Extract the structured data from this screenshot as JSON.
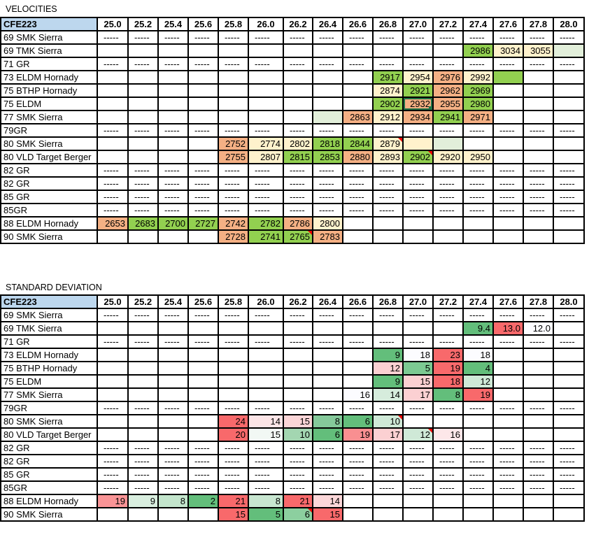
{
  "colors": {
    "green": "#92d050",
    "yellow": "#fff2cc",
    "orange": "#f4b084",
    "lightgreen": "#e2efda",
    "header": "#bdd7ee"
  },
  "tables": [
    {
      "title": "VELOCITIES",
      "corner": "CFE223",
      "columns": [
        "25.0",
        "25.2",
        "25.4",
        "25.6",
        "25.8",
        "26.0",
        "26.2",
        "26.4",
        "26.6",
        "26.8",
        "27.0",
        "27.2",
        "27.4",
        "27.6",
        "27.8",
        "28.0"
      ],
      "rows": [
        {
          "label": "69 SMK Sierra",
          "dashes": "-----"
        },
        {
          "label": "69 TMK Sierra",
          "cells": {
            "12": {
              "v": "2986",
              "c": "#92d050"
            },
            "13": {
              "v": "3034",
              "c": "#fff2cc"
            },
            "14": {
              "v": "3055",
              "c": "#fff2cc"
            },
            "15": {
              "v": "",
              "c": "#e2efda"
            }
          }
        },
        {
          "label": "71 GR",
          "dashes": "-----"
        },
        {
          "label": "73 ELDM Hornady",
          "cells": {
            "9": {
              "v": "2917",
              "c": "#92d050"
            },
            "10": {
              "v": "2954",
              "c": "#fff2cc"
            },
            "11": {
              "v": "2976",
              "c": "#f4b084"
            },
            "12": {
              "v": "2992",
              "c": "#fff2cc"
            },
            "13": {
              "v": "",
              "c": "#92d050"
            }
          }
        },
        {
          "label": "75 BTHP Hornady",
          "cells": {
            "9": {
              "v": "2874",
              "c": "#fff2cc"
            },
            "10": {
              "v": "2921",
              "c": "#92d050"
            },
            "11": {
              "v": "2962",
              "c": "#f4b084"
            },
            "12": {
              "v": "2969",
              "c": "#92d050"
            }
          }
        },
        {
          "label": "75 ELDM",
          "cells": {
            "9": {
              "v": "2902",
              "c": "#92d050"
            },
            "10": {
              "v": "2932",
              "c": "#f4b084",
              "sel": true
            },
            "11": {
              "v": "2955",
              "c": "#f4b084"
            },
            "12": {
              "v": "2980",
              "c": "#92d050"
            }
          }
        },
        {
          "label": "77 SMK Sierra",
          "cells": {
            "7": {
              "v": "",
              "c": "#e2efda"
            },
            "8": {
              "v": "2863",
              "c": "#f4b084"
            },
            "9": {
              "v": "2912",
              "c": "#fff2cc"
            },
            "10": {
              "v": "2934",
              "c": "#f4b084"
            },
            "11": {
              "v": "2941",
              "c": "#92d050"
            },
            "12": {
              "v": "2971",
              "c": "#f4b084"
            }
          }
        },
        {
          "label": "79GR",
          "dashes": "-----"
        },
        {
          "label": "80 SMK Sierra",
          "cells": {
            "4": {
              "v": "2752",
              "c": "#f4b084"
            },
            "5": {
              "v": "2774",
              "c": "#fff2cc"
            },
            "6": {
              "v": "2802",
              "c": "#fff2cc"
            },
            "7": {
              "v": "2818",
              "c": "#92d050"
            },
            "8": {
              "v": "2844",
              "c": "#92d050"
            },
            "9": {
              "v": "2879",
              "c": "#fff2cc",
              "note": true
            },
            "10": {
              "v": "",
              "c": "#fff2cc"
            },
            "11": {
              "v": "",
              "c": "#e2efda"
            }
          }
        },
        {
          "label": "80 VLD Target Berger",
          "cells": {
            "4": {
              "v": "2755",
              "c": "#f4b084"
            },
            "5": {
              "v": "2807",
              "c": "#fff2cc"
            },
            "6": {
              "v": "2815",
              "c": "#92d050"
            },
            "7": {
              "v": "2853",
              "c": "#92d050"
            },
            "8": {
              "v": "2880",
              "c": "#f4b084"
            },
            "9": {
              "v": "2893",
              "c": "#fff2cc"
            },
            "10": {
              "v": "2902",
              "c": "#92d050",
              "note": true
            },
            "11": {
              "v": "2920",
              "c": "#fff2cc"
            },
            "12": {
              "v": "2950",
              "c": "#fff2cc"
            }
          }
        },
        {
          "label": "82 GR",
          "dashes": "-----"
        },
        {
          "label": "82 GR",
          "dashes": "-----"
        },
        {
          "label": "85 GR",
          "dashes": "-----"
        },
        {
          "label": "85GR",
          "dashes": "-----"
        },
        {
          "label": "88 ELDM Hornady",
          "cells": {
            "0": {
              "v": "2653",
              "c": "#f4b084"
            },
            "1": {
              "v": "2683",
              "c": "#92d050"
            },
            "2": {
              "v": "2700",
              "c": "#92d050"
            },
            "3": {
              "v": "2727",
              "c": "#92d050"
            },
            "4": {
              "v": "2742",
              "c": "#f4b084"
            },
            "5": {
              "v": "2782",
              "c": "#92d050"
            },
            "6": {
              "v": "2786",
              "c": "#f4b084"
            },
            "7": {
              "v": "2800",
              "c": "#fff2cc"
            }
          }
        },
        {
          "label": "90 SMK Sierra",
          "cells": {
            "4": {
              "v": "2728",
              "c": "#f4b084"
            },
            "5": {
              "v": "2741",
              "c": "#92d050"
            },
            "6": {
              "v": "2765",
              "c": "#92d050",
              "note": true
            },
            "7": {
              "v": "2783",
              "c": "#f4b084"
            }
          }
        }
      ]
    },
    {
      "title": "STANDARD DEVIATION",
      "corner": "CFE223",
      "columns": [
        "25.0",
        "25.2",
        "25.4",
        "25.6",
        "25.8",
        "26.0",
        "26.2",
        "26.4",
        "26.6",
        "26.8",
        "27.0",
        "27.2",
        "27.4",
        "27.6",
        "27.8",
        "28.0"
      ],
      "rows": [
        {
          "label": "69 SMK Sierra",
          "dashes": "-----"
        },
        {
          "label": "69 TMK Sierra",
          "cells": {
            "12": {
              "v": "9.4",
              "c": "#63be7b"
            },
            "13": {
              "v": "13.0",
              "c": "#f8696b"
            },
            "14": {
              "v": "12.0",
              "c": "#fcfcff"
            }
          }
        },
        {
          "label": "71 GR",
          "dashes": "-----"
        },
        {
          "label": "73 ELDM Hornady",
          "cells": {
            "9": {
              "v": "9",
              "c": "#63be7b"
            },
            "10": {
              "v": "18",
              "c": "#fcfcff"
            },
            "11": {
              "v": "23",
              "c": "#f8696b"
            },
            "12": {
              "v": "18",
              "c": "#fcfcff"
            }
          }
        },
        {
          "label": "75 BTHP Hornady",
          "cells": {
            "9": {
              "v": "12",
              "c": "#fbd0d2"
            },
            "10": {
              "v": "5",
              "c": "#7cc992"
            },
            "11": {
              "v": "19",
              "c": "#f8696b"
            },
            "12": {
              "v": "4",
              "c": "#63be7b"
            }
          }
        },
        {
          "label": "75 ELDM",
          "cells": {
            "9": {
              "v": "9",
              "c": "#63be7b"
            },
            "10": {
              "v": "15",
              "c": "#fbd0d2"
            },
            "11": {
              "v": "18",
              "c": "#f8696b"
            },
            "12": {
              "v": "12",
              "c": "#cfe9d7"
            }
          }
        },
        {
          "label": "77 SMK Sierra",
          "cells": {
            "8": {
              "v": "16",
              "c": "#fcfcff"
            },
            "9": {
              "v": "14",
              "c": "#d6ecdc"
            },
            "10": {
              "v": "17",
              "c": "#fbd0d2"
            },
            "11": {
              "v": "8",
              "c": "#63be7b"
            },
            "12": {
              "v": "19",
              "c": "#f8696b"
            }
          }
        },
        {
          "label": "79GR",
          "dashes": "-----"
        },
        {
          "label": "80 SMK Sierra",
          "cells": {
            "4": {
              "v": "24",
              "c": "#f8696b"
            },
            "5": {
              "v": "14",
              "c": "#fde5e7"
            },
            "6": {
              "v": "15",
              "c": "#fbd5d7"
            },
            "7": {
              "v": "8",
              "c": "#85c99a"
            },
            "8": {
              "v": "6",
              "c": "#63be7b"
            },
            "9": {
              "v": "10",
              "c": "#cfe9d7",
              "note": true
            }
          }
        },
        {
          "label": "80 VLD Target Berger",
          "cells": {
            "4": {
              "v": "20",
              "c": "#f8696b"
            },
            "5": {
              "v": "15",
              "c": "#f2f8f4"
            },
            "6": {
              "v": "10",
              "c": "#a3d6b1"
            },
            "7": {
              "v": "6",
              "c": "#63be7b"
            },
            "8": {
              "v": "19",
              "c": "#f98f91"
            },
            "9": {
              "v": "17",
              "c": "#fbd0d2"
            },
            "10": {
              "v": "12",
              "c": "#cfe9d7",
              "note": true
            },
            "11": {
              "v": "16",
              "c": "#fde7e9"
            }
          }
        },
        {
          "label": "82 GR",
          "dashes": "-----"
        },
        {
          "label": "82 GR",
          "dashes": "-----"
        },
        {
          "label": "85 GR",
          "dashes": "-----"
        },
        {
          "label": "85GR",
          "dashes": "-----"
        },
        {
          "label": "88 ELDM Hornady",
          "cells": {
            "0": {
              "v": "19",
              "c": "#f99496"
            },
            "1": {
              "v": "9",
              "c": "#d9eedf"
            },
            "2": {
              "v": "8",
              "c": "#c3e5cc"
            },
            "3": {
              "v": "2",
              "c": "#63be7b"
            },
            "4": {
              "v": "21",
              "c": "#f8696b"
            },
            "5": {
              "v": "8",
              "c": "#c8e6d0"
            },
            "6": {
              "v": "21",
              "c": "#f8696b"
            },
            "7": {
              "v": "14",
              "c": "#fcd7d9"
            }
          }
        },
        {
          "label": "90 SMK Sierra",
          "cells": {
            "4": {
              "v": "15",
              "c": "#f8696b"
            },
            "5": {
              "v": "5",
              "c": "#63be7b"
            },
            "6": {
              "v": "6",
              "c": "#8ccf9f",
              "note": true
            },
            "7": {
              "v": "15",
              "c": "#f8696b"
            }
          }
        }
      ]
    }
  ]
}
